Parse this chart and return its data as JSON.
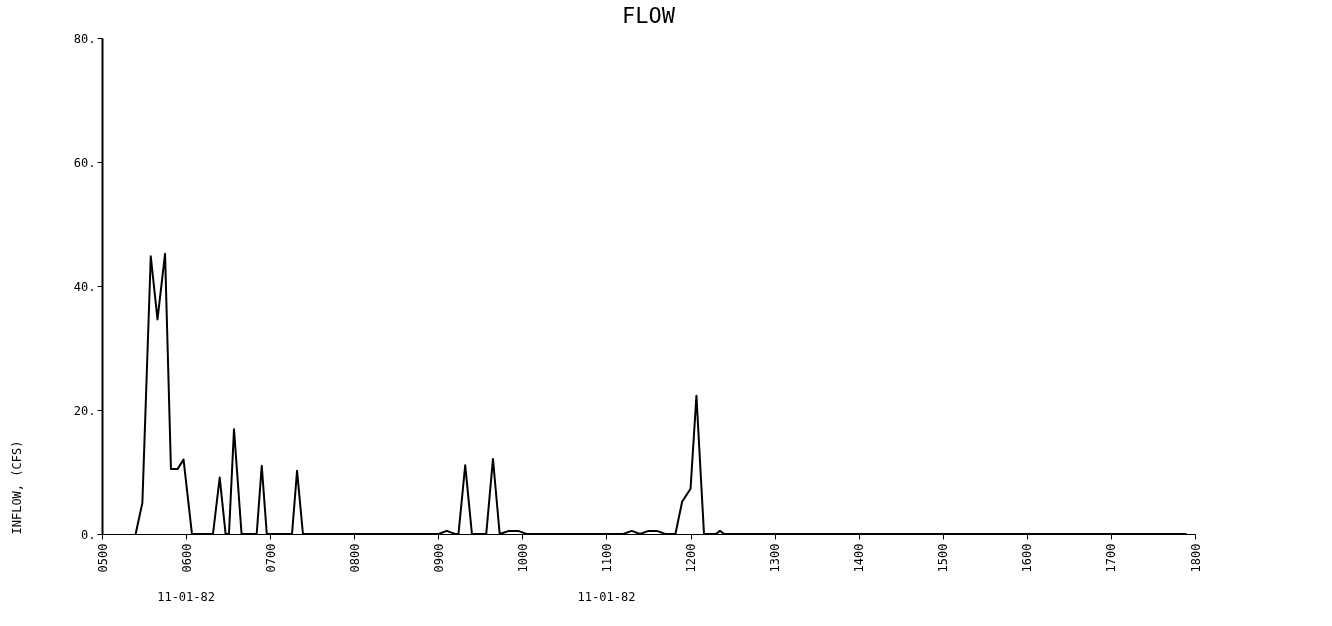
{
  "chart_data": {
    "type": "line",
    "title": "FLOW",
    "ylabel": "INFLOW, (CFS)",
    "x": [
      540,
      548,
      558,
      566,
      575,
      582,
      590,
      597,
      607,
      632,
      640,
      647,
      651,
      657,
      666,
      684,
      690,
      696,
      726,
      732,
      739,
      750,
      900,
      910,
      920,
      924,
      932,
      940,
      950,
      957,
      965,
      973,
      984,
      995,
      1005,
      1120,
      1130,
      1140,
      1150,
      1160,
      1170,
      1182,
      1190,
      1200,
      1207,
      1216,
      1230,
      1235,
      1240,
      1790
    ],
    "series": [
      {
        "color": "#000000",
        "values": [
          0,
          5,
          44.8,
          34.6,
          45.2,
          10.5,
          10.5,
          12,
          0,
          0,
          9.1,
          0,
          0,
          16.9,
          0,
          0,
          11,
          0,
          0,
          10.2,
          0,
          0,
          0,
          0.5,
          0,
          0,
          11.1,
          0,
          0,
          0,
          12.1,
          0,
          0.5,
          0.5,
          0,
          0,
          0.5,
          0,
          0.5,
          0.5,
          0,
          0,
          5.2,
          7.3,
          22.3,
          0,
          0,
          0.5,
          0,
          0
        ]
      }
    ],
    "xlim": [
      500,
      1800
    ],
    "xticks": [
      {
        "value": 500,
        "label": "0500"
      },
      {
        "value": 600,
        "label": "0600"
      },
      {
        "value": 700,
        "label": "0700"
      },
      {
        "value": 800,
        "label": "0800"
      },
      {
        "value": 900,
        "label": "0900"
      },
      1000,
      1100,
      1200,
      1300,
      1400,
      1500,
      1600,
      1700,
      1800
    ],
    "ylim": [
      0,
      80
    ],
    "yticks": [
      {
        "value": 0,
        "label": "0."
      },
      {
        "value": 20,
        "label": "20."
      },
      {
        "value": 40,
        "label": "40."
      },
      {
        "value": 60,
        "label": "60."
      },
      {
        "value": 80,
        "label": "80."
      }
    ],
    "annotations": [
      "11-01-82",
      "11-01-82"
    ],
    "grid": false,
    "marker": "none",
    "line_style": "solid"
  }
}
